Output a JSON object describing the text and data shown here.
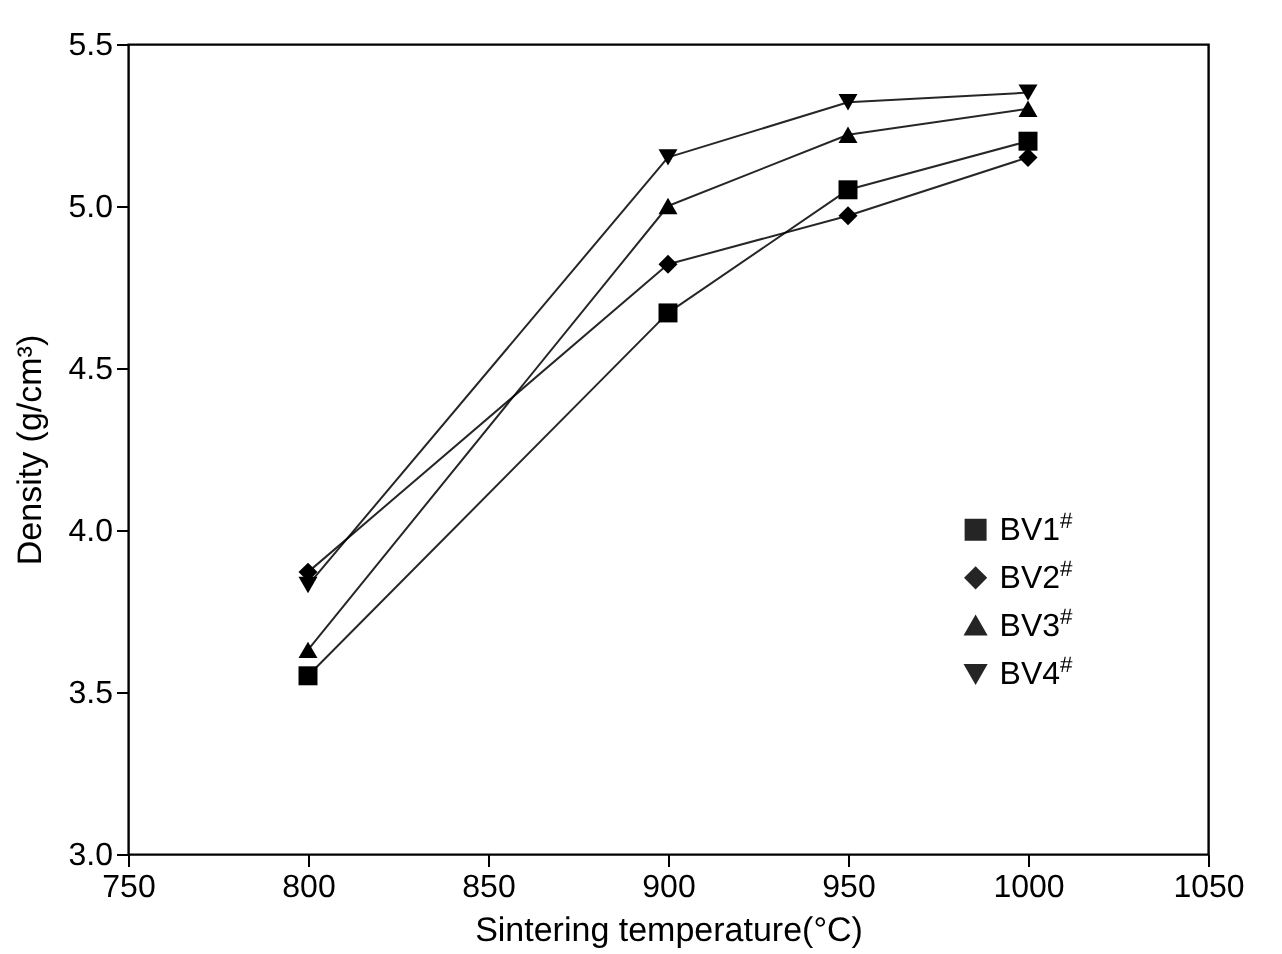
{
  "chart_data": {
    "type": "line",
    "xlabel": "Sintering temperature(°C)",
    "ylabel": "Density (g/cm³)",
    "x": [
      800,
      900,
      950,
      1000
    ],
    "series": [
      {
        "name": "BV1$^{#}$",
        "color": "#000000",
        "marker": "square",
        "values": [
          3.55,
          4.67,
          5.05,
          5.2
        ]
      },
      {
        "name": "BV2$^{#}$",
        "color": "#000000",
        "marker": "diamond",
        "values": [
          3.87,
          4.82,
          4.97,
          5.15
        ]
      },
      {
        "name": "BV3$^{#}$",
        "color": "#000000",
        "marker": "triangle",
        "values": [
          3.63,
          5.0,
          5.22,
          5.3
        ]
      },
      {
        "name": "BV4$^{#}$",
        "color": "#000000",
        "marker": "triangle-down",
        "values": [
          3.83,
          5.15,
          5.32,
          5.35
        ]
      }
    ],
    "xlim": [
      750,
      1050
    ],
    "xticks": [
      750,
      800,
      850,
      900,
      950,
      1000,
      1050
    ],
    "ylim": [
      3.0,
      5.5
    ],
    "yticks": [
      {
        "value": 3,
        "label": "3.0"
      },
      {
        "value": 3.5,
        "label": "3.5"
      },
      {
        "value": 4,
        "label": "4.0"
      },
      {
        "value": 4.5,
        "label": "4.5"
      },
      {
        "value": 5,
        "label": "5.0"
      },
      {
        "value": 5.5,
        "label": "5.5"
      }
    ],
    "grid": false,
    "legend": "right",
    "line_style": "solid"
  }
}
